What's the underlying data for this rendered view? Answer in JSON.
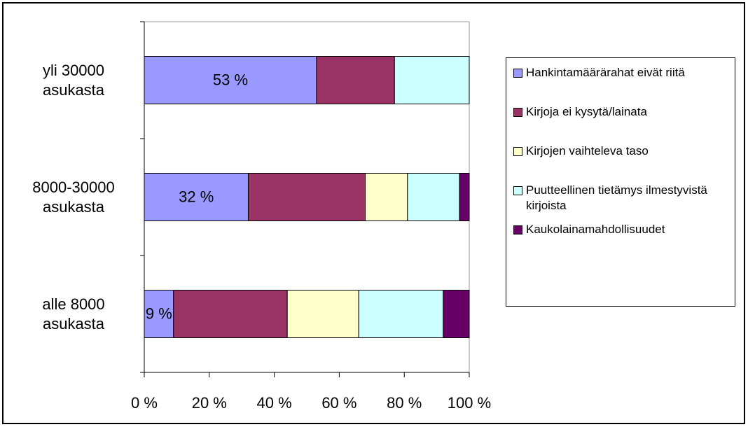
{
  "chart_data": {
    "type": "stacked_barh",
    "categories": [
      "yli 30000 asukasta",
      "8000-30000 asukasta",
      "alle 8000 asukasta"
    ],
    "series": [
      {
        "name": "Hankintamäärärahat eivät riitä",
        "color": "#9999ff",
        "values": [
          53,
          32,
          9
        ],
        "value_labels": [
          "53 %",
          "32 %",
          "9 %"
        ]
      },
      {
        "name": "Kirjoja ei kysytä/lainata",
        "color": "#993366",
        "values": [
          24,
          36,
          35
        ]
      },
      {
        "name": "Kirjojen vaihteleva taso",
        "color": "#ffffcc",
        "values": [
          0,
          13,
          22
        ]
      },
      {
        "name": "Puutteellinen tietämys ilmestyvistä kirjoista",
        "color": "#ccffff",
        "values": [
          23,
          16,
          26
        ]
      },
      {
        "name": "Kaukolainamahdollisuudet",
        "color": "#660066",
        "values": [
          0,
          3,
          8
        ]
      }
    ],
    "xlim": [
      0,
      100
    ],
    "xticks": [
      {
        "value": 0,
        "label": "0 %"
      },
      {
        "value": 20,
        "label": "20 %"
      },
      {
        "value": 40,
        "label": "40 %"
      },
      {
        "value": 60,
        "label": "60 %"
      },
      {
        "value": 80,
        "label": "80 %"
      },
      {
        "value": 100,
        "label": "100 %"
      }
    ],
    "legend": "right",
    "grid": false
  }
}
